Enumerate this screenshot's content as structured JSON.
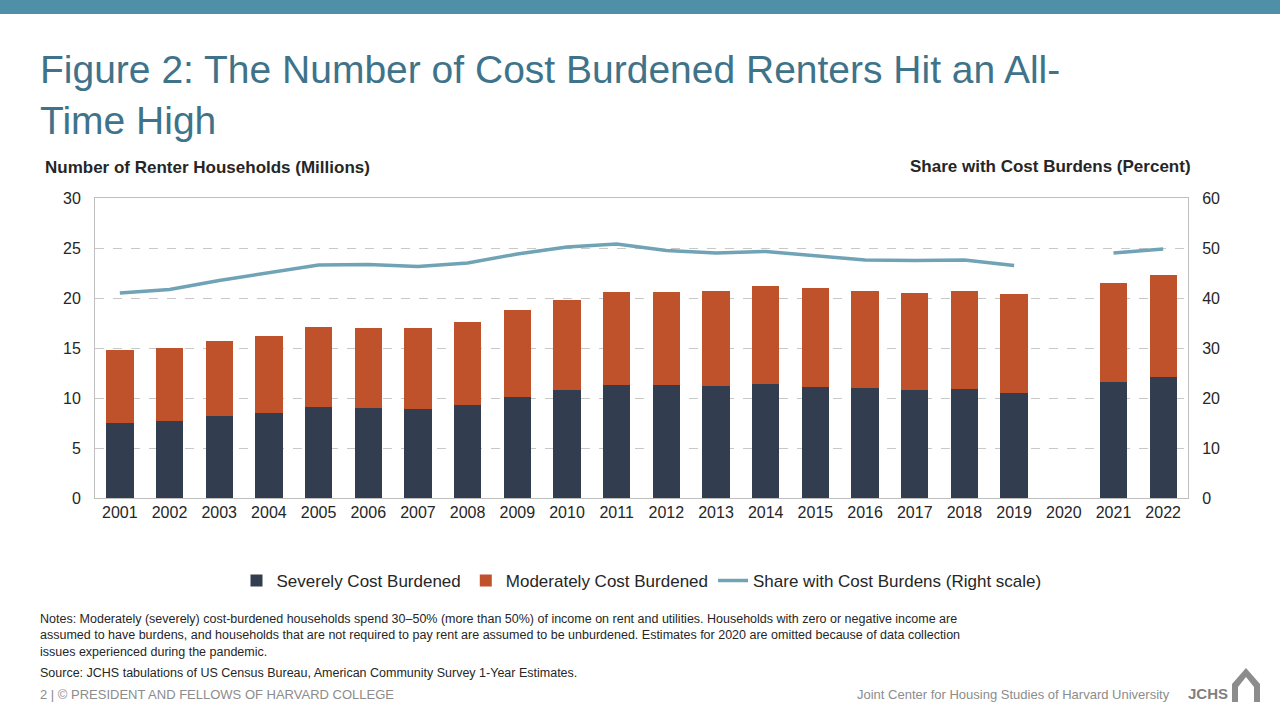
{
  "chart_data": {
    "type": "bar",
    "title": "Figure 2: The Number of Cost Burdened Renters Hit an All-Time High",
    "y_label": "Number of Renter Households (Millions)",
    "y2_label": "Share with Cost Burdens (Percent)",
    "categories": [
      "2001",
      "2002",
      "2003",
      "2004",
      "2005",
      "2006",
      "2007",
      "2008",
      "2009",
      "2010",
      "2011",
      "2012",
      "2013",
      "2014",
      "2015",
      "2016",
      "2017",
      "2018",
      "2019",
      "2020",
      "2021",
      "2022"
    ],
    "series": [
      {
        "name": "Severely Cost Burdened",
        "type": "bar",
        "color": "#323e4f",
        "values": [
          7.5,
          7.7,
          8.2,
          8.5,
          9.1,
          9.0,
          8.9,
          9.3,
          10.1,
          10.8,
          11.3,
          11.3,
          11.2,
          11.4,
          11.1,
          11.0,
          10.8,
          10.9,
          10.5,
          null,
          11.6,
          12.1
        ]
      },
      {
        "name": "Moderately Cost Burdened",
        "type": "bar",
        "color": "#c0522b",
        "values": [
          7.3,
          7.3,
          7.5,
          7.7,
          8.0,
          8.0,
          8.1,
          8.3,
          8.7,
          9.0,
          9.3,
          9.3,
          9.5,
          9.8,
          9.9,
          9.7,
          9.7,
          9.8,
          9.9,
          null,
          9.9,
          10.2
        ]
      },
      {
        "name": "Share with Cost Burdens (Right scale)",
        "type": "line",
        "axis": "y2",
        "color": "#6fa3b5",
        "values": [
          41.0,
          41.7,
          43.5,
          45.0,
          46.6,
          46.7,
          46.3,
          47.0,
          48.8,
          50.2,
          50.8,
          49.5,
          49.0,
          49.3,
          48.5,
          47.6,
          47.5,
          47.6,
          46.5,
          null,
          49.0,
          49.8
        ]
      }
    ],
    "ylim": [
      0,
      30
    ],
    "yticks": [
      0,
      5,
      10,
      15,
      20,
      25,
      30
    ],
    "y2lim": [
      0,
      60
    ],
    "y2ticks": [
      0,
      10,
      20,
      30,
      40,
      50,
      60
    ],
    "stacked": true,
    "grid": true,
    "legend": "bottom"
  },
  "notes": "Notes: Moderately (severely) cost-burdened households spend 30–50% (more than 50%) of income on rent and utilities. Households with zero or negative income are assumed to have burdens, and households that are not required to pay rent are assumed to be unburdened. Estimates for 2020 are omitted because of data collection issues experienced during the pandemic.",
  "source": "Source: JCHS tabulations of US Census Bureau, American Community Survey 1-Year Estimates.",
  "footer": {
    "left": "2 | © PRESIDENT AND FELLOWS OF HARVARD COLLEGE",
    "right": "Joint Center for Housing Studies of Harvard University",
    "logo": "JCHS"
  }
}
